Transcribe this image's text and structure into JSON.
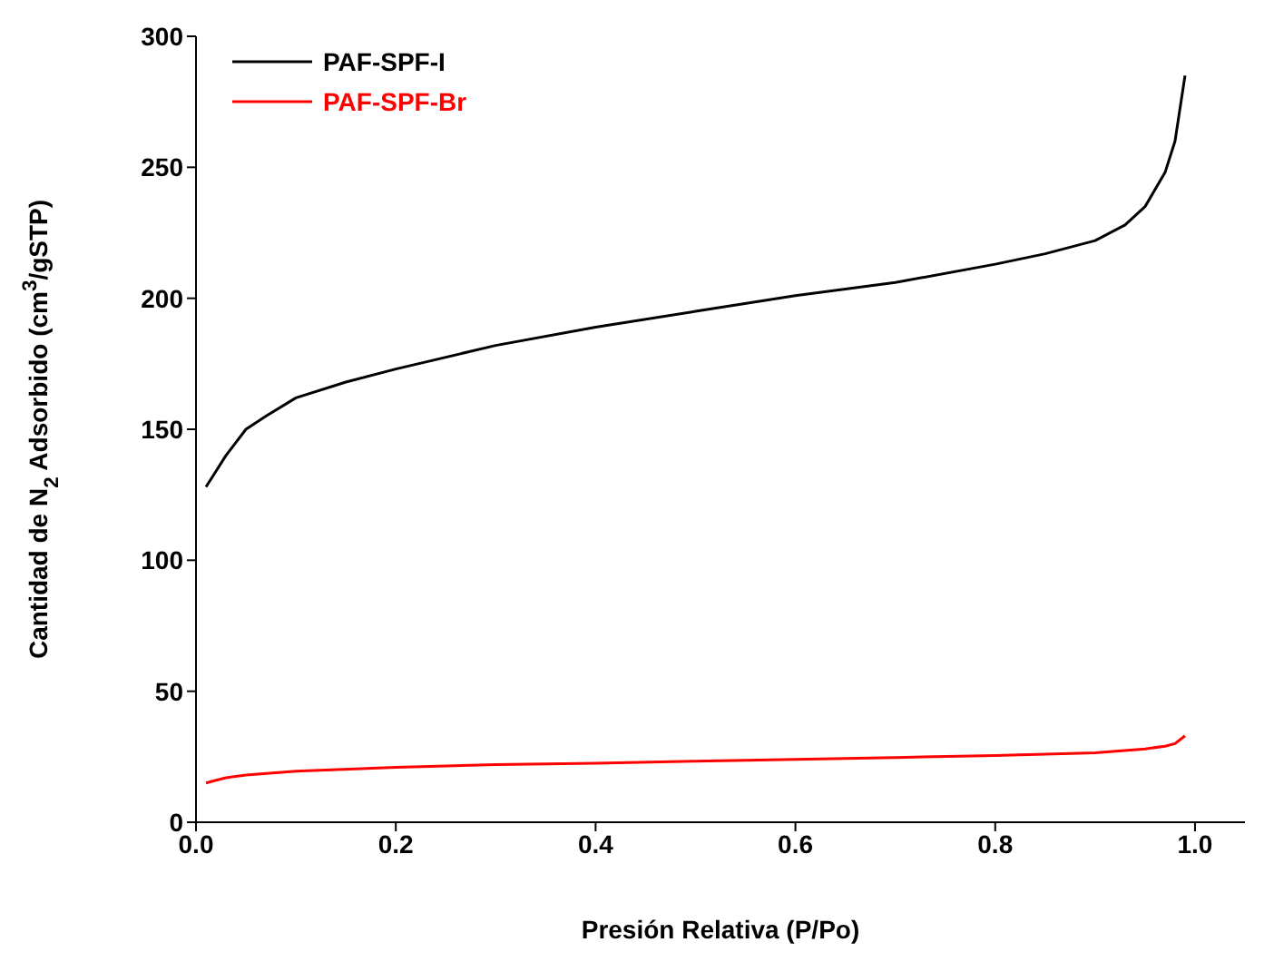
{
  "chart_data": {
    "type": "line",
    "xlabel": "Presión Relativa (P/Po)",
    "ylabel": "Cantidad de N$_{2}$ Adsorbido (cm$^{3}$/gSTP)",
    "xlim": [
      0,
      1.05
    ],
    "ylim": [
      0,
      300
    ],
    "xticks": [
      {
        "value": 0,
        "label": "0.0"
      },
      {
        "value": 0.2,
        "label": "0.2"
      },
      {
        "value": 0.4,
        "label": "0.4"
      },
      {
        "value": 0.6,
        "label": "0.6"
      },
      {
        "value": 0.8,
        "label": "0.8"
      },
      {
        "value": 1,
        "label": "1.0"
      }
    ],
    "yticks": [
      0,
      50,
      100,
      150,
      200,
      250,
      300
    ],
    "legend": "top left",
    "grid": false,
    "marker": "none",
    "line_style": "solid",
    "series": [
      {
        "name": "PAF-SPF-I",
        "color": "#000000",
        "x": [
          0.01,
          0.02,
          0.03,
          0.05,
          0.07,
          0.1,
          0.15,
          0.2,
          0.3,
          0.4,
          0.5,
          0.6,
          0.7,
          0.8,
          0.85,
          0.9,
          0.93,
          0.95,
          0.97,
          0.98,
          0.99
        ],
        "values": [
          128,
          134,
          140,
          150,
          155,
          162,
          168,
          173,
          182,
          189,
          195,
          201,
          206,
          213,
          217,
          222,
          228,
          235,
          248,
          260,
          285
        ]
      },
      {
        "name": "PAF-SPF-Br",
        "color": "#ff0000",
        "x": [
          0.01,
          0.02,
          0.03,
          0.05,
          0.1,
          0.2,
          0.3,
          0.4,
          0.5,
          0.6,
          0.7,
          0.8,
          0.9,
          0.95,
          0.97,
          0.98,
          0.99
        ],
        "values": [
          15,
          16,
          17,
          18,
          19.5,
          21,
          22,
          22.5,
          23.3,
          24,
          24.7,
          25.5,
          26.5,
          28,
          29,
          30,
          33
        ]
      }
    ]
  }
}
